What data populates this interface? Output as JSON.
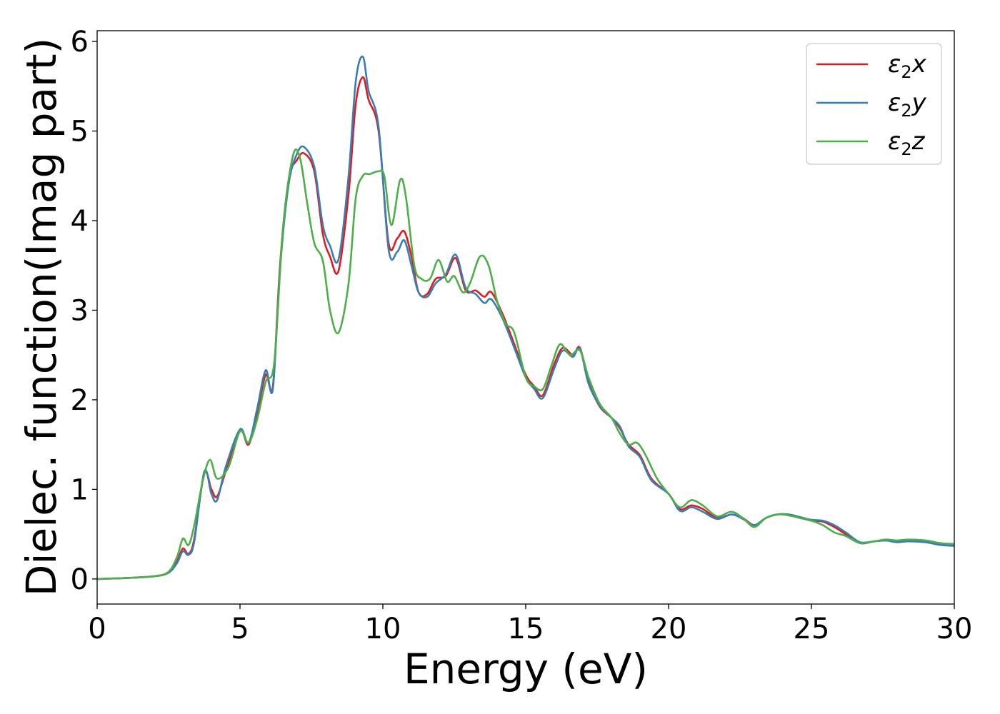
{
  "chart_data": {
    "type": "line",
    "xlabel": "Energy (eV)",
    "ylabel": "Dielec. function(Imag part)",
    "xlim": [
      0,
      30
    ],
    "ylim": [
      -0.28,
      6.12
    ],
    "xticks": [
      0,
      5,
      10,
      15,
      20,
      25,
      30
    ],
    "yticks": [
      0,
      1,
      2,
      3,
      4,
      5,
      6
    ],
    "legend_position": "top-right",
    "grid": false,
    "series": [
      {
        "name": "ε₂x",
        "label_base": "ε",
        "label_sub": "2",
        "label_axis": "x",
        "color": "#e41a1c",
        "x": [
          0,
          1,
          2,
          2.5,
          2.8,
          3.0,
          3.2,
          3.4,
          3.75,
          4.0,
          4.2,
          4.5,
          5.0,
          5.3,
          5.6,
          5.9,
          6.15,
          6.4,
          6.7,
          7.0,
          7.25,
          7.6,
          7.9,
          8.15,
          8.45,
          8.8,
          9.05,
          9.3,
          9.5,
          9.85,
          10.2,
          10.5,
          10.75,
          11.0,
          11.25,
          11.55,
          11.85,
          12.2,
          12.55,
          12.9,
          13.25,
          13.55,
          13.8,
          14.2,
          14.6,
          15.0,
          15.3,
          15.6,
          16.0,
          16.3,
          16.65,
          16.9,
          17.2,
          17.6,
          18.0,
          18.3,
          18.6,
          19.0,
          19.4,
          20.0,
          20.4,
          20.8,
          21.2,
          21.7,
          22.2,
          22.6,
          23.0,
          23.4,
          23.8,
          24.2,
          24.6,
          25.0,
          25.4,
          25.8,
          26.2,
          26.7,
          27.2,
          27.6,
          28.0,
          28.4,
          29.0,
          29.5,
          30.0
        ],
        "y": [
          0,
          0.01,
          0.03,
          0.07,
          0.2,
          0.34,
          0.28,
          0.45,
          1.18,
          1.0,
          0.92,
          1.2,
          1.65,
          1.5,
          1.85,
          2.28,
          2.15,
          3.5,
          4.45,
          4.68,
          4.75,
          4.55,
          3.85,
          3.6,
          3.44,
          4.3,
          5.3,
          5.6,
          5.35,
          5.0,
          3.75,
          3.8,
          3.88,
          3.6,
          3.2,
          3.18,
          3.35,
          3.38,
          3.58,
          3.22,
          3.22,
          3.15,
          3.2,
          2.95,
          2.62,
          2.28,
          2.15,
          2.05,
          2.4,
          2.58,
          2.5,
          2.58,
          2.2,
          1.92,
          1.8,
          1.68,
          1.5,
          1.38,
          1.12,
          0.95,
          0.78,
          0.82,
          0.78,
          0.68,
          0.72,
          0.68,
          0.6,
          0.68,
          0.72,
          0.72,
          0.69,
          0.65,
          0.64,
          0.58,
          0.5,
          0.4,
          0.42,
          0.43,
          0.42,
          0.43,
          0.42,
          0.4,
          0.38
        ]
      },
      {
        "name": "ε₂y",
        "label_base": "ε",
        "label_sub": "2",
        "label_axis": "y",
        "color": "#377eb8",
        "x": [
          0,
          1,
          2,
          2.5,
          2.8,
          3.0,
          3.2,
          3.4,
          3.75,
          4.0,
          4.2,
          4.5,
          5.0,
          5.3,
          5.6,
          5.9,
          6.15,
          6.4,
          6.7,
          7.0,
          7.25,
          7.6,
          7.9,
          8.15,
          8.45,
          8.8,
          9.05,
          9.3,
          9.5,
          9.85,
          10.2,
          10.5,
          10.75,
          11.0,
          11.25,
          11.55,
          11.85,
          12.2,
          12.55,
          12.9,
          13.25,
          13.55,
          13.8,
          14.2,
          14.6,
          15.0,
          15.3,
          15.6,
          16.0,
          16.3,
          16.65,
          16.9,
          17.2,
          17.6,
          18.0,
          18.3,
          18.6,
          19.0,
          19.4,
          20.0,
          20.4,
          20.8,
          21.2,
          21.7,
          22.2,
          22.6,
          23.0,
          23.4,
          23.8,
          24.2,
          24.6,
          25.0,
          25.4,
          25.8,
          26.2,
          26.7,
          27.2,
          27.6,
          28.0,
          28.4,
          29.0,
          29.5,
          30.0
        ],
        "y": [
          0,
          0.01,
          0.03,
          0.07,
          0.18,
          0.31,
          0.27,
          0.42,
          1.2,
          0.95,
          0.88,
          1.25,
          1.67,
          1.52,
          1.9,
          2.33,
          2.12,
          3.45,
          4.4,
          4.75,
          4.82,
          4.6,
          3.95,
          3.72,
          3.57,
          4.5,
          5.55,
          5.83,
          5.45,
          5.05,
          3.68,
          3.65,
          3.78,
          3.5,
          3.2,
          3.15,
          3.3,
          3.4,
          3.62,
          3.25,
          3.18,
          3.08,
          3.12,
          2.9,
          2.58,
          2.25,
          2.12,
          2.02,
          2.35,
          2.55,
          2.48,
          2.57,
          2.18,
          1.93,
          1.8,
          1.7,
          1.48,
          1.36,
          1.1,
          0.95,
          0.76,
          0.8,
          0.75,
          0.67,
          0.72,
          0.67,
          0.6,
          0.68,
          0.72,
          0.72,
          0.69,
          0.66,
          0.65,
          0.6,
          0.52,
          0.41,
          0.42,
          0.43,
          0.41,
          0.42,
          0.41,
          0.38,
          0.37
        ]
      },
      {
        "name": "ε₂z",
        "label_base": "ε",
        "label_sub": "2",
        "label_axis": "z",
        "color": "#4daf4a",
        "x": [
          0,
          1,
          2,
          2.5,
          2.8,
          3.0,
          3.2,
          3.4,
          3.7,
          3.95,
          4.2,
          4.6,
          5.0,
          5.3,
          5.6,
          5.9,
          6.2,
          6.5,
          6.85,
          7.1,
          7.35,
          7.6,
          7.9,
          8.15,
          8.45,
          8.8,
          9.05,
          9.3,
          9.55,
          9.85,
          10.05,
          10.3,
          10.6,
          10.8,
          11.1,
          11.35,
          11.65,
          11.95,
          12.25,
          12.5,
          12.8,
          13.05,
          13.4,
          13.7,
          14.0,
          14.3,
          14.6,
          15.0,
          15.3,
          15.6,
          15.9,
          16.2,
          16.55,
          16.9,
          17.2,
          17.6,
          18.0,
          18.3,
          18.6,
          18.9,
          19.2,
          19.6,
          20.0,
          20.4,
          20.8,
          21.2,
          21.7,
          22.2,
          22.6,
          23.0,
          23.4,
          23.8,
          24.2,
          24.6,
          25.0,
          25.4,
          25.8,
          26.2,
          26.7,
          27.2,
          27.6,
          28.0,
          28.4,
          29.0,
          29.5,
          30.0
        ],
        "y": [
          0,
          0.01,
          0.03,
          0.08,
          0.25,
          0.45,
          0.38,
          0.6,
          1.1,
          1.33,
          1.12,
          1.25,
          1.65,
          1.52,
          1.78,
          2.2,
          2.42,
          3.9,
          4.72,
          4.7,
          4.2,
          3.75,
          3.55,
          3.0,
          2.75,
          3.3,
          4.25,
          4.5,
          4.52,
          4.55,
          4.5,
          3.95,
          4.45,
          4.28,
          3.5,
          3.35,
          3.35,
          3.56,
          3.32,
          3.38,
          3.2,
          3.3,
          3.6,
          3.5,
          3.1,
          2.85,
          2.75,
          2.25,
          2.15,
          2.12,
          2.38,
          2.62,
          2.5,
          2.55,
          2.25,
          1.95,
          1.8,
          1.62,
          1.5,
          1.52,
          1.38,
          1.12,
          0.95,
          0.8,
          0.88,
          0.82,
          0.7,
          0.75,
          0.68,
          0.58,
          0.68,
          0.72,
          0.71,
          0.68,
          0.65,
          0.6,
          0.52,
          0.48,
          0.4,
          0.42,
          0.44,
          0.43,
          0.44,
          0.43,
          0.4,
          0.39
        ]
      }
    ]
  }
}
